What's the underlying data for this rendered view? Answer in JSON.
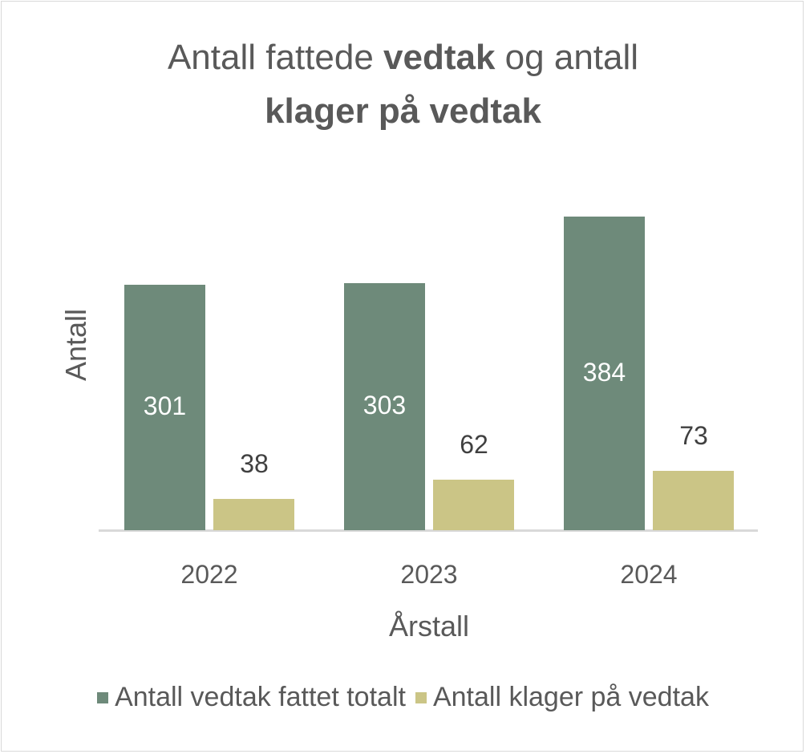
{
  "chart_data": {
    "type": "bar",
    "title": "Antall fattede vedtak og antall klager på vedtak",
    "title_parts": {
      "line1_a": "Antall fattede ",
      "line1_b": "vedtak",
      "line1_c": " og antall",
      "line2": "klager på vedtak"
    },
    "xlabel": "Årstall",
    "ylabel": "Antall",
    "categories": [
      "2022",
      "2023",
      "2024"
    ],
    "series": [
      {
        "name": "Antall vedtak fattet totalt",
        "color": "#6e8a7a",
        "values": [
          301,
          303,
          384
        ],
        "labels": [
          "301",
          "303",
          "384"
        ]
      },
      {
        "name": "Antall klager på vedtak",
        "color": "#cbc586",
        "values": [
          38,
          62,
          73
        ],
        "labels": [
          "38",
          "62",
          "73"
        ]
      }
    ],
    "grid": false,
    "legend_position": "bottom",
    "ylim": [
      0,
      400
    ]
  }
}
